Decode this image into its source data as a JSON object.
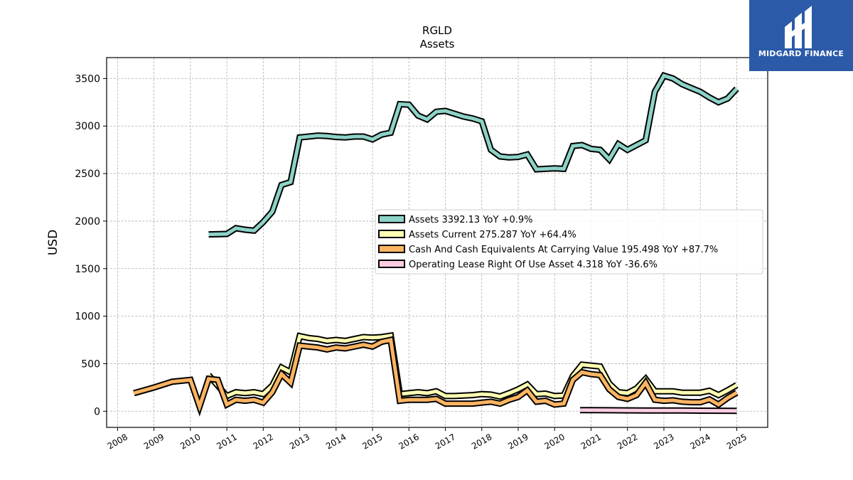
{
  "brand": {
    "name": "MIDGARD FINANCE",
    "bg": "#2b5aa8"
  },
  "chart_data": {
    "type": "line",
    "title": "RGLD",
    "subtitle": "Assets",
    "xlabel": "",
    "ylabel": "USD",
    "xlim": [
      2007.7,
      2025.85
    ],
    "ylim": [
      -170,
      3720
    ],
    "yticks": [
      0,
      500,
      1000,
      1500,
      2000,
      2500,
      3000,
      3500
    ],
    "xticks": [
      "2008",
      "2009",
      "2010",
      "2011",
      "2012",
      "2013",
      "2014",
      "2015",
      "2016",
      "2017",
      "2018",
      "2019",
      "2020",
      "2021",
      "2022",
      "2023",
      "2024",
      "2025"
    ],
    "grid": true,
    "legend_position": "center-right",
    "series": [
      {
        "name": "Assets",
        "legend_label": "Assets  3392.13 YoY +0.9%",
        "color": "#8dd3c7",
        "x": [
          2010.5,
          2011.0,
          2011.25,
          2011.5,
          2011.75,
          2012.0,
          2012.25,
          2012.5,
          2012.75,
          2013.0,
          2013.25,
          2013.5,
          2013.75,
          2014.0,
          2014.25,
          2014.5,
          2014.75,
          2015.0,
          2015.25,
          2015.5,
          2015.75,
          2016.0,
          2016.25,
          2016.5,
          2016.75,
          2017.0,
          2017.25,
          2017.5,
          2017.75,
          2018.0,
          2018.25,
          2018.5,
          2018.75,
          2019.0,
          2019.25,
          2019.5,
          2019.75,
          2020.0,
          2020.25,
          2020.5,
          2020.75,
          2021.0,
          2021.25,
          2021.5,
          2021.75,
          2022.0,
          2022.25,
          2022.5,
          2022.75,
          2023.0,
          2023.25,
          2023.5,
          2023.75,
          2024.0,
          2024.25,
          2024.5,
          2024.75,
          2025.0
        ],
        "values": [
          1860,
          1865,
          1925,
          1910,
          1900,
          1990,
          2100,
          2380,
          2410,
          2880,
          2890,
          2900,
          2895,
          2885,
          2880,
          2890,
          2890,
          2860,
          2910,
          2930,
          3230,
          3225,
          3110,
          3070,
          3150,
          3160,
          3130,
          3100,
          3080,
          3050,
          2750,
          2680,
          2670,
          2675,
          2700,
          2545,
          2550,
          2555,
          2550,
          2790,
          2800,
          2760,
          2750,
          2650,
          2810,
          2750,
          2800,
          2850,
          3360,
          3530,
          3500,
          3440,
          3400,
          3360,
          3300,
          3250,
          3290,
          3392
        ]
      },
      {
        "name": "Assets Current",
        "legend_label": "Assets Current  275.287 YoY +64.4%",
        "color": "#ffffb3",
        "x": [
          2010.5,
          2010.75,
          2011.0,
          2011.25,
          2011.5,
          2011.75,
          2012.0,
          2012.25,
          2012.5,
          2012.75,
          2013.0,
          2013.25,
          2013.5,
          2013.75,
          2014.0,
          2014.25,
          2014.5,
          2014.75,
          2015.0,
          2015.25,
          2015.5,
          2015.75,
          2016.0,
          2016.25,
          2016.5,
          2016.75,
          2017.0,
          2017.25,
          2017.5,
          2017.75,
          2018.0,
          2018.25,
          2018.5,
          2018.75,
          2019.0,
          2019.25,
          2019.5,
          2019.75,
          2020.0,
          2020.25,
          2020.5,
          2020.75,
          2021.0,
          2021.25,
          2021.5,
          2021.75,
          2022.0,
          2022.25,
          2022.5,
          2022.75,
          2023.0,
          2023.25,
          2023.5,
          2023.75,
          2024.0,
          2024.25,
          2024.5,
          2024.75,
          2025.0
        ],
        "values": [
          380,
          270,
          160,
          200,
          190,
          200,
          180,
          270,
          460,
          410,
          790,
          770,
          760,
          740,
          750,
          740,
          760,
          780,
          775,
          780,
          795,
          180,
          190,
          200,
          190,
          210,
          160,
          160,
          165,
          170,
          180,
          175,
          155,
          190,
          230,
          280,
          180,
          185,
          160,
          165,
          370,
          490,
          480,
          470,
          290,
          200,
          190,
          240,
          340,
          210,
          210,
          210,
          195,
          195,
          195,
          215,
          170,
          220,
          275
        ]
      },
      {
        "name": "Cash And Cash Equivalents At Carrying Value",
        "legend_label": "Cash And Cash Equivalents At Carrying Value  195.498 YoY +87.7%",
        "color": "#fdb462",
        "x": [
          2008.45,
          2009.0,
          2009.5,
          2010.0,
          2010.25,
          2010.5,
          2010.75,
          2011.0,
          2011.25,
          2011.5,
          2011.75,
          2012.0,
          2012.25,
          2012.5,
          2012.75,
          2013.0,
          2013.25,
          2013.5,
          2013.75,
          2014.0,
          2014.25,
          2014.5,
          2014.75,
          2015.0,
          2015.25,
          2015.5,
          2015.75,
          2016.0,
          2016.25,
          2016.5,
          2016.75,
          2017.0,
          2017.25,
          2017.5,
          2017.75,
          2018.0,
          2018.25,
          2018.5,
          2018.75,
          2019.0,
          2019.25,
          2019.5,
          2019.75,
          2020.0,
          2020.25,
          2020.5,
          2020.75,
          2021.0,
          2021.25,
          2021.5,
          2021.75,
          2022.0,
          2022.25,
          2022.5,
          2022.75,
          2023.0,
          2023.25,
          2023.5,
          2023.75,
          2024.0,
          2024.25,
          2024.5,
          2024.75,
          2025.0
        ],
        "values": [
          190,
          250,
          310,
          330,
          50,
          340,
          330,
          70,
          120,
          110,
          120,
          90,
          200,
          390,
          300,
          690,
          680,
          670,
          650,
          670,
          660,
          680,
          700,
          680,
          730,
          750,
          110,
          120,
          120,
          120,
          130,
          80,
          80,
          80,
          80,
          90,
          100,
          80,
          120,
          150,
          220,
          100,
          110,
          70,
          80,
          330,
          410,
          390,
          380,
          230,
          150,
          130,
          170,
          300,
          120,
          110,
          115,
          100,
          95,
          95,
          125,
          70,
          140,
          195
        ]
      },
      {
        "name": "Operating Lease Right Of Use Asset",
        "legend_label": "Operating Lease Right Of Use Asset  4.318 YoY -36.6%",
        "color": "#fccde5",
        "x": [
          2020.7,
          2021.0,
          2021.5,
          2022.0,
          2022.5,
          2023.0,
          2023.5,
          2024.0,
          2024.5,
          2025.0
        ],
        "values": [
          12,
          11,
          10,
          9,
          8,
          8,
          7,
          6,
          5,
          4.3
        ]
      }
    ]
  }
}
